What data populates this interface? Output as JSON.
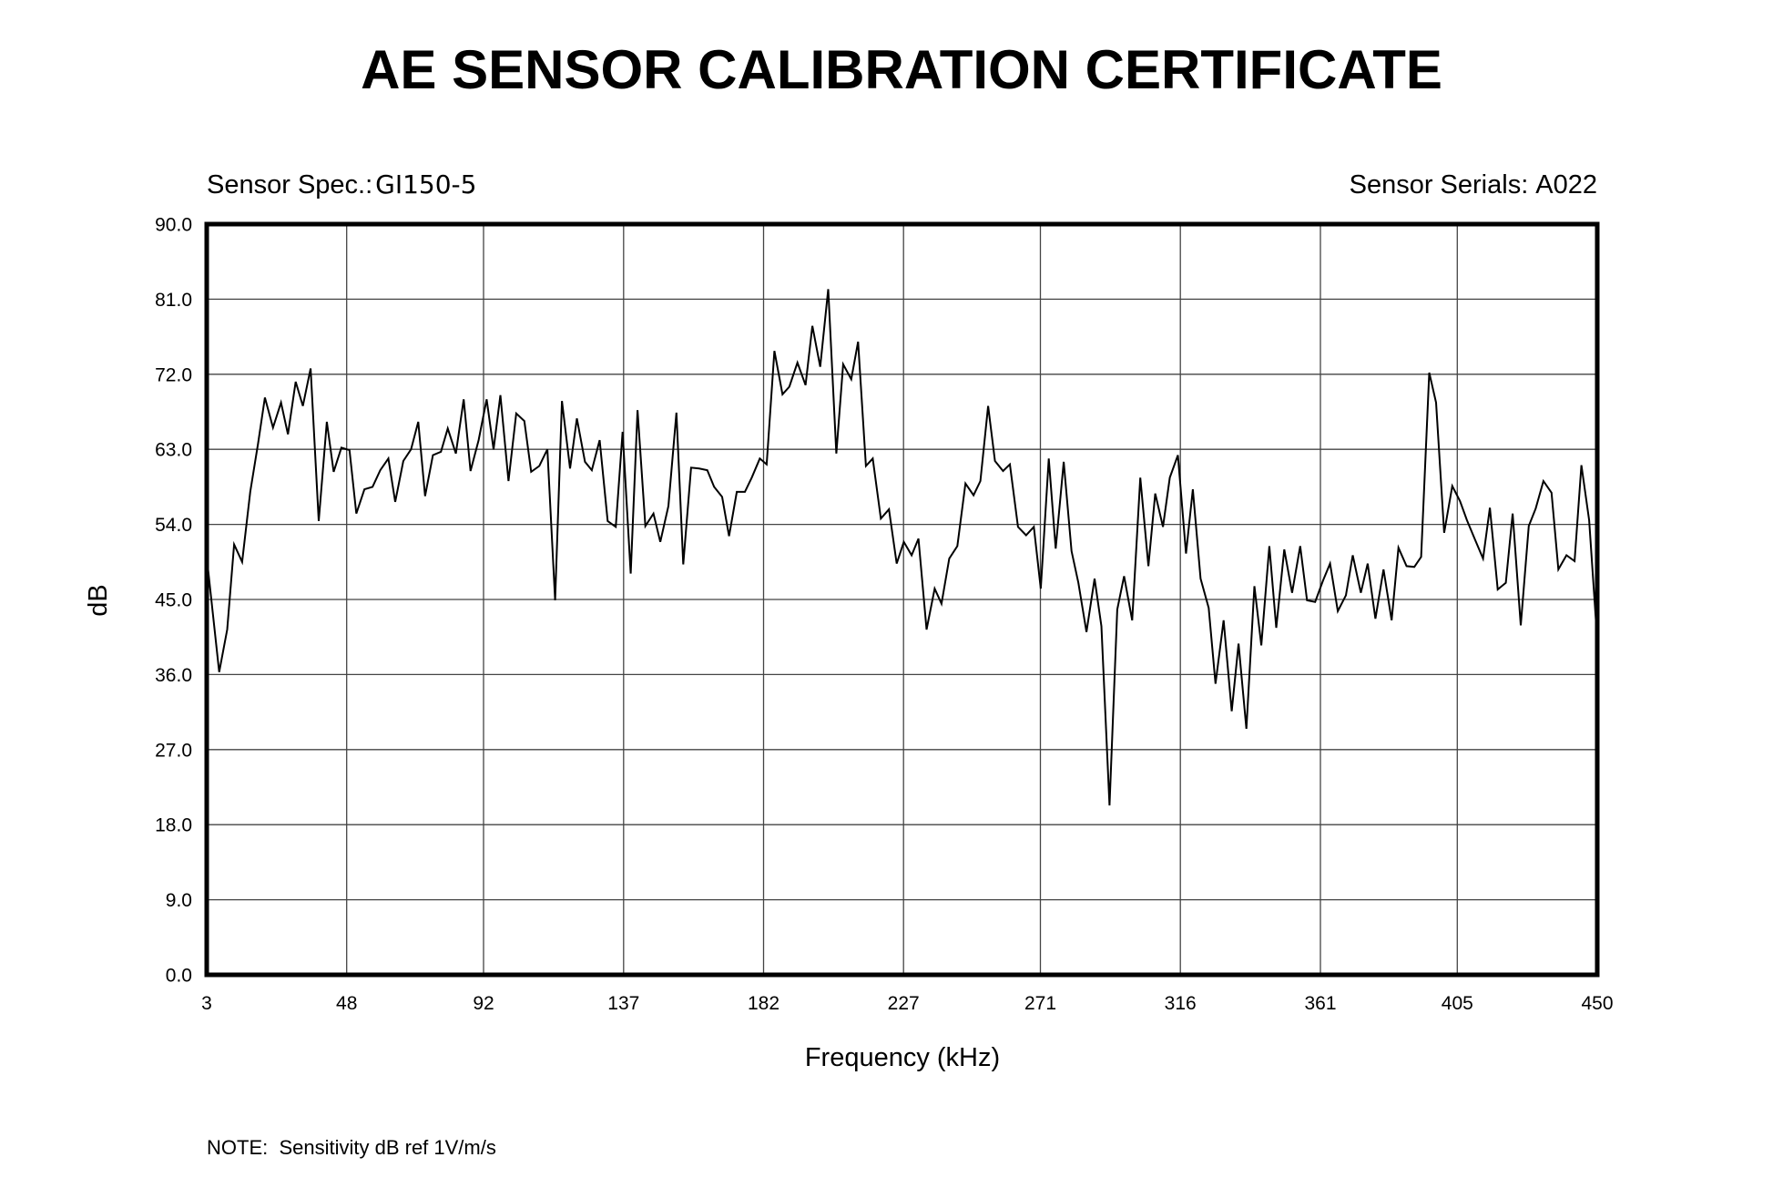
{
  "header": {
    "sensor_spec_label": "Sensor Spec.:",
    "sensor_spec_value": "GI150-5",
    "sensor_serials_label": "Sensor Serials:",
    "sensor_serials_value": "A022"
  },
  "footer": {
    "note": "NOTE:  Sensitivity dB ref 1V/m/s"
  },
  "colors": {
    "background": "#ffffff",
    "text": "#000000",
    "frame": "#000000",
    "grid": "#444444",
    "line": "#000000"
  },
  "chart_data": {
    "type": "line",
    "title": "AE SENSOR CALIBRATION CERTIFICATE",
    "xlabel": "Frequency (kHz)",
    "ylabel": "dB",
    "xlim": [
      3,
      450
    ],
    "ylim": [
      0,
      90
    ],
    "grid": true,
    "x_tick_labels": [
      "3",
      "48",
      "92",
      "137",
      "182",
      "227",
      "271",
      "316",
      "361",
      "405",
      "450"
    ],
    "y_tick_labels": [
      "0.0",
      "9.0",
      "18.0",
      "27.0",
      "36.0",
      "45.0",
      "54.0",
      "63.0",
      "72.0",
      "81.0",
      "90.0"
    ],
    "series": [
      {
        "x": [
          3.0,
          7.0,
          9.6,
          11.8,
          14.4,
          17.0,
          19.5,
          21.7,
          24.3,
          26.9,
          29.1,
          31.6,
          33.9,
          36.4,
          39.0,
          41.6,
          43.8,
          46.3,
          48.9,
          51.1,
          53.7,
          56.3,
          58.8,
          61.4,
          63.6,
          66.2,
          68.7,
          71.0,
          73.2,
          75.7,
          78.3,
          80.5,
          83.1,
          85.6,
          87.8,
          90.4,
          93.0,
          95.2,
          97.4,
          100.0,
          102.5,
          105.1,
          107.3,
          109.9,
          112.5,
          115.0,
          117.2,
          119.8,
          122.0,
          124.6,
          126.8,
          129.3,
          131.9,
          134.5,
          136.7,
          139.3,
          141.5,
          144.0,
          146.6,
          148.8,
          151.4,
          154.0,
          156.2,
          158.7,
          161.3,
          163.9,
          166.1,
          168.7,
          170.9,
          173.4,
          176.0,
          178.2,
          180.8,
          183.0,
          185.5,
          188.1,
          190.3,
          192.9,
          195.5,
          197.7,
          200.2,
          202.8,
          205.4,
          207.6,
          210.2,
          212.4,
          214.9,
          217.1,
          219.7,
          222.3,
          224.8,
          227.1,
          229.6,
          231.8,
          234.4,
          237.0,
          239.2,
          241.7,
          244.3,
          246.9,
          249.5,
          251.7,
          254.2,
          256.4,
          259.0,
          261.2,
          263.8,
          266.4,
          268.9,
          271.1,
          273.7,
          275.9,
          278.5,
          281.0,
          283.2,
          285.8,
          288.4,
          290.6,
          293.2,
          295.7,
          297.9,
          300.5,
          303.1,
          305.7,
          307.9,
          310.4,
          312.6,
          315.2,
          317.8,
          320.0,
          322.5,
          325.1,
          327.3,
          329.9,
          332.5,
          334.7,
          337.2,
          339.8,
          342.0,
          344.6,
          346.8,
          349.4,
          351.9,
          354.5,
          356.7,
          359.3,
          361.9,
          364.1,
          366.6,
          369.2,
          371.4,
          374.0,
          376.2,
          378.7,
          381.3,
          383.9,
          386.1,
          388.7,
          391.2,
          393.4,
          396.0,
          398.2,
          400.8,
          403.4,
          405.9,
          408.1,
          410.7,
          413.3,
          415.5,
          418.0,
          420.6,
          422.8,
          425.4,
          428.0,
          430.2,
          432.7,
          435.3,
          437.5,
          440.1,
          442.7,
          444.9,
          447.4,
          450.0
        ],
        "y": [
          50.1,
          36.3,
          41.4,
          51.6,
          49.5,
          57.9,
          63.7,
          69.2,
          65.6,
          68.6,
          64.8,
          71.1,
          68.2,
          72.7,
          54.4,
          66.3,
          60.3,
          63.2,
          62.9,
          55.3,
          58.2,
          58.5,
          60.5,
          61.9,
          56.7,
          61.6,
          63.0,
          66.3,
          57.4,
          62.3,
          62.7,
          65.5,
          62.5,
          69.0,
          60.4,
          64.1,
          69.0,
          63.0,
          69.5,
          59.2,
          67.3,
          66.4,
          60.3,
          61.0,
          63.0,
          44.9,
          68.8,
          60.7,
          66.7,
          61.5,
          60.5,
          64.1,
          54.4,
          53.7,
          65.1,
          48.1,
          67.7,
          53.8,
          55.3,
          51.9,
          56.2,
          67.4,
          49.2,
          60.8,
          60.7,
          60.5,
          58.5,
          57.3,
          52.6,
          57.9,
          57.9,
          59.6,
          61.9,
          61.2,
          74.8,
          69.6,
          70.5,
          73.4,
          70.7,
          77.8,
          72.9,
          82.2,
          62.5,
          73.2,
          71.4,
          75.9,
          61.0,
          61.9,
          54.7,
          55.8,
          49.3,
          51.9,
          50.3,
          52.3,
          41.4,
          46.3,
          44.5,
          49.9,
          51.4,
          58.9,
          57.5,
          59.2,
          68.2,
          61.6,
          60.4,
          61.2,
          53.7,
          52.7,
          53.7,
          46.3,
          61.9,
          51.1,
          61.5,
          50.8,
          47.0,
          41.1,
          47.5,
          41.8,
          20.3,
          43.8,
          47.8,
          42.5,
          59.6,
          49.0,
          57.7,
          53.7,
          59.6,
          62.3,
          50.5,
          58.2,
          47.5,
          44.0,
          34.9,
          42.5,
          31.6,
          39.7,
          29.5,
          46.6,
          39.5,
          51.4,
          41.6,
          51.0,
          45.8,
          51.4,
          44.9,
          44.7,
          47.3,
          49.3,
          43.6,
          45.5,
          50.3,
          45.8,
          49.3,
          42.7,
          48.6,
          42.5,
          51.2,
          49.0,
          48.9,
          50.1,
          72.2,
          68.6,
          53.0,
          58.6,
          56.8,
          54.5,
          52.2,
          49.9,
          56.0,
          46.2,
          47.0,
          55.3,
          41.9,
          53.8,
          55.9,
          59.2,
          57.8,
          48.6,
          50.3,
          49.6,
          61.1,
          54.5,
          40.1
        ]
      }
    ]
  }
}
